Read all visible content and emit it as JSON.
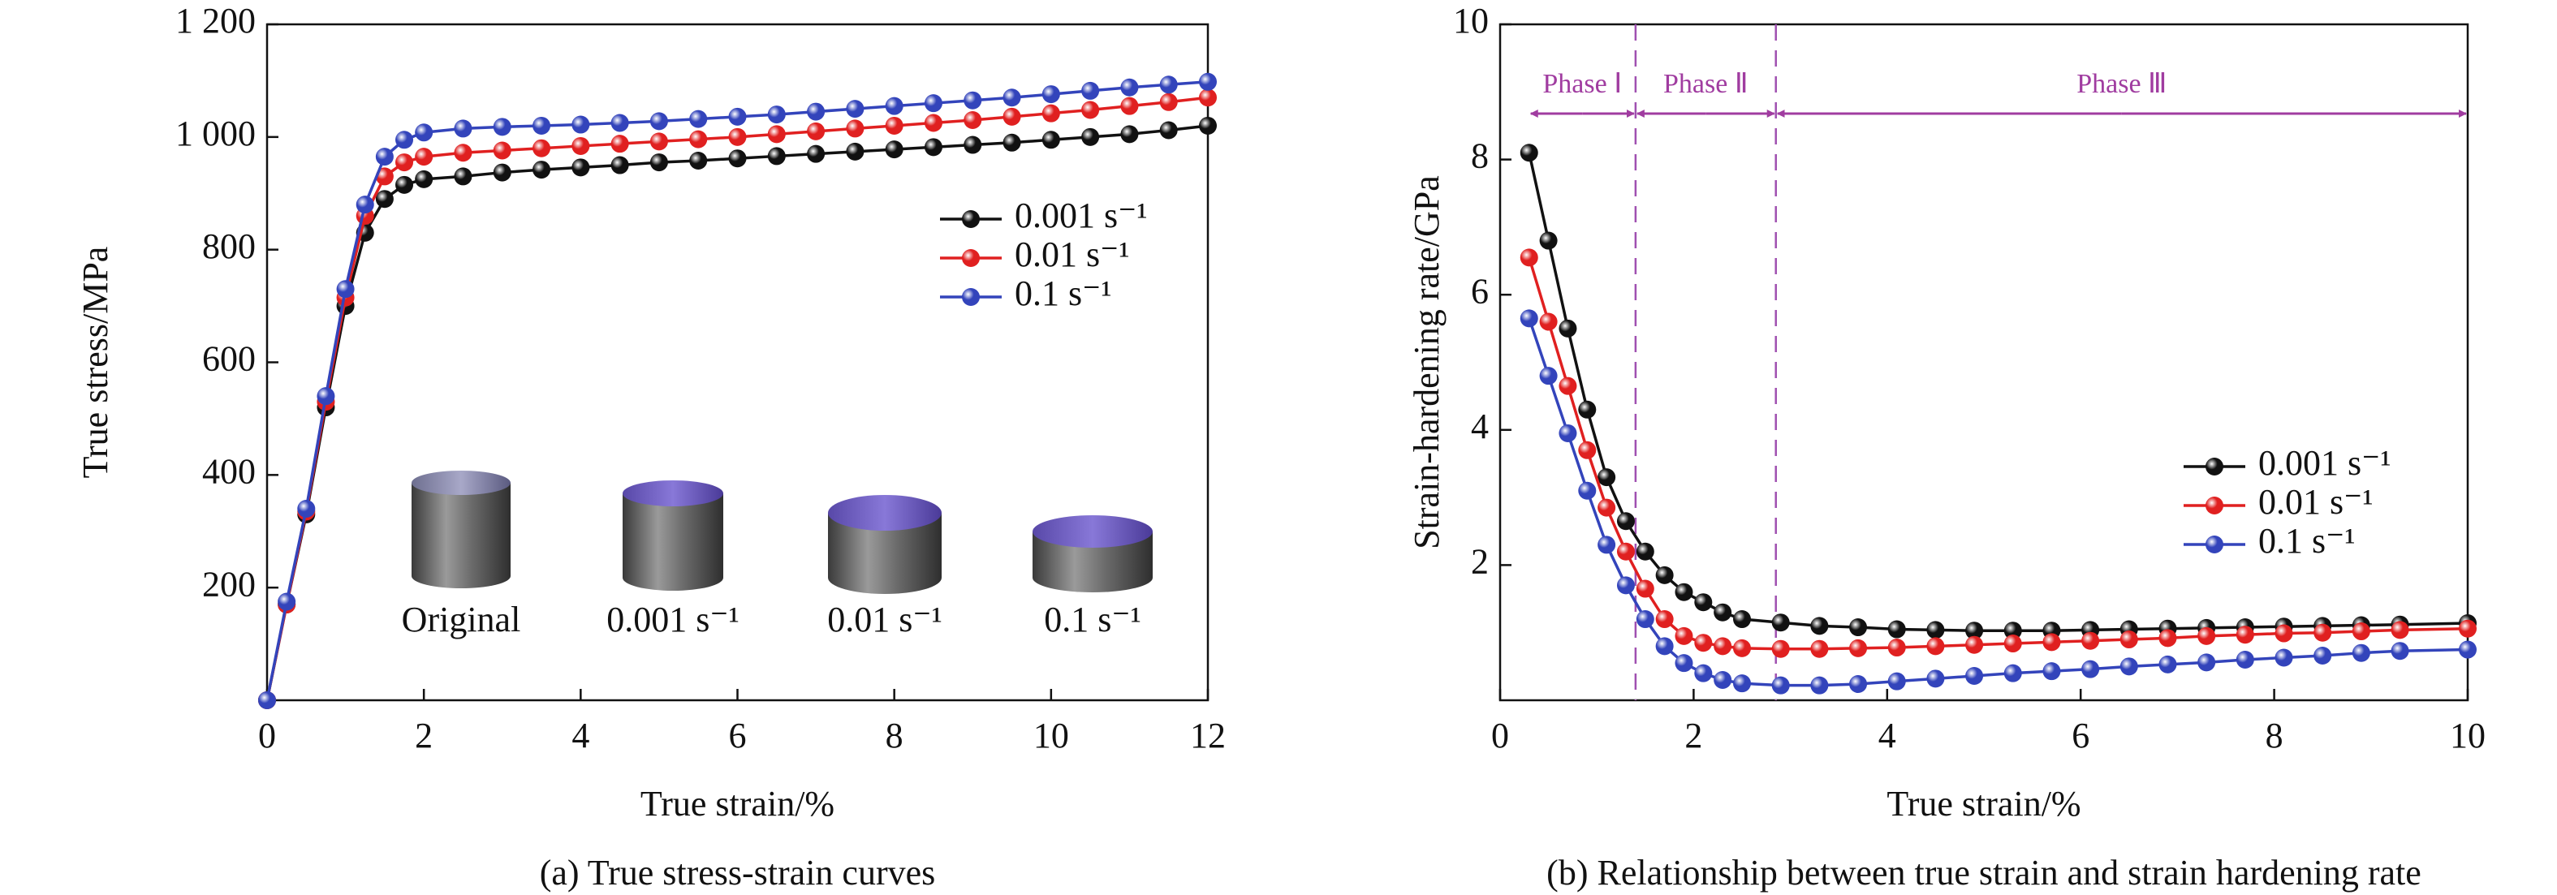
{
  "chart_data": [
    {
      "type": "line",
      "x_label": "True strain/%",
      "y_label": "True stress/MPa",
      "caption": "(a) True stress-strain curves",
      "xlim": [
        0,
        12
      ],
      "xticks": [
        0,
        2,
        4,
        6,
        8,
        10,
        12
      ],
      "ylim": [
        0,
        1200
      ],
      "yticks": [
        200,
        400,
        600,
        800,
        {
          "value": 1000,
          "label": "1 000"
        },
        {
          "value": 1200,
          "label": "1 200"
        }
      ],
      "legend_position": "center right",
      "x": [
        0,
        0.25,
        0.5,
        0.75,
        1.0,
        1.25,
        1.5,
        1.75,
        2.0,
        2.5,
        3,
        3.5,
        4,
        4.5,
        5,
        5.5,
        6,
        6.5,
        7,
        7.5,
        8,
        8.5,
        9,
        9.5,
        10,
        10.5,
        11,
        11.5,
        12
      ],
      "series": [
        {
          "name": "0.001 s⁻¹",
          "color": "#111111",
          "values": [
            0,
            170,
            330,
            520,
            700,
            830,
            890,
            915,
            925,
            930,
            937,
            942,
            946,
            950,
            955,
            958,
            962,
            966,
            970,
            974,
            978,
            982,
            986,
            990,
            995,
            1000,
            1005,
            1012,
            1020
          ]
        },
        {
          "name": "0.01 s⁻¹",
          "color": "#e02020",
          "values": [
            0,
            170,
            335,
            530,
            715,
            860,
            930,
            955,
            965,
            972,
            976,
            980,
            984,
            988,
            992,
            996,
            1000,
            1005,
            1010,
            1015,
            1020,
            1025,
            1030,
            1036,
            1042,
            1048,
            1055,
            1062,
            1070
          ]
        },
        {
          "name": "0.1 s⁻¹",
          "color": "#3344bb",
          "values": [
            0,
            175,
            340,
            540,
            730,
            880,
            965,
            995,
            1008,
            1015,
            1018,
            1020,
            1022,
            1025,
            1028,
            1032,
            1036,
            1040,
            1045,
            1050,
            1055,
            1060,
            1065,
            1070,
            1076,
            1082,
            1088,
            1093,
            1098
          ]
        }
      ],
      "photo_labels": [
        "Original",
        "0.001 s⁻¹",
        "0.01 s⁻¹",
        "0.1 s⁻¹"
      ]
    },
    {
      "type": "line",
      "x_label": "True strain/%",
      "y_label": "Strain-hardening rate/GPa",
      "caption": "(b) Relationship between true strain and strain hardening rate",
      "xlim": [
        0,
        10
      ],
      "xticks": [
        0,
        2,
        4,
        6,
        8,
        10
      ],
      "ylim": [
        0,
        10
      ],
      "yticks": [
        2,
        4,
        6,
        8,
        10
      ],
      "legend_position": "lower right",
      "x": [
        0.3,
        0.5,
        0.7,
        0.9,
        1.1,
        1.3,
        1.5,
        1.7,
        1.9,
        2.1,
        2.3,
        2.5,
        2.9,
        3.3,
        3.7,
        4.1,
        4.5,
        4.9,
        5.3,
        5.7,
        6.1,
        6.5,
        6.9,
        7.3,
        7.7,
        8.1,
        8.5,
        8.9,
        9.3,
        10.0
      ],
      "series": [
        {
          "name": "0.001 s⁻¹",
          "color": "#111111",
          "values": [
            8.1,
            6.8,
            5.5,
            4.3,
            3.3,
            2.65,
            2.2,
            1.85,
            1.6,
            1.45,
            1.3,
            1.2,
            1.15,
            1.1,
            1.08,
            1.05,
            1.04,
            1.03,
            1.03,
            1.03,
            1.04,
            1.05,
            1.06,
            1.07,
            1.08,
            1.09,
            1.1,
            1.11,
            1.12,
            1.14
          ]
        },
        {
          "name": "0.01 s⁻¹",
          "color": "#e02020",
          "values": [
            6.55,
            5.6,
            4.65,
            3.7,
            2.85,
            2.2,
            1.65,
            1.2,
            0.95,
            0.85,
            0.8,
            0.77,
            0.76,
            0.76,
            0.77,
            0.78,
            0.8,
            0.82,
            0.84,
            0.86,
            0.88,
            0.9,
            0.92,
            0.95,
            0.97,
            0.99,
            1.0,
            1.02,
            1.04,
            1.06
          ]
        },
        {
          "name": "0.1 s⁻¹",
          "color": "#3344bb",
          "values": [
            5.65,
            4.8,
            3.95,
            3.1,
            2.3,
            1.7,
            1.2,
            0.8,
            0.55,
            0.4,
            0.3,
            0.25,
            0.22,
            0.22,
            0.24,
            0.28,
            0.32,
            0.36,
            0.4,
            0.43,
            0.46,
            0.5,
            0.53,
            0.56,
            0.6,
            0.63,
            0.66,
            0.7,
            0.73,
            0.75
          ]
        }
      ],
      "phases": [
        "Phase Ⅰ",
        "Phase Ⅱ",
        "Phase Ⅲ"
      ],
      "phase_bounds": [
        0.3,
        1.4,
        2.85,
        10
      ]
    }
  ]
}
